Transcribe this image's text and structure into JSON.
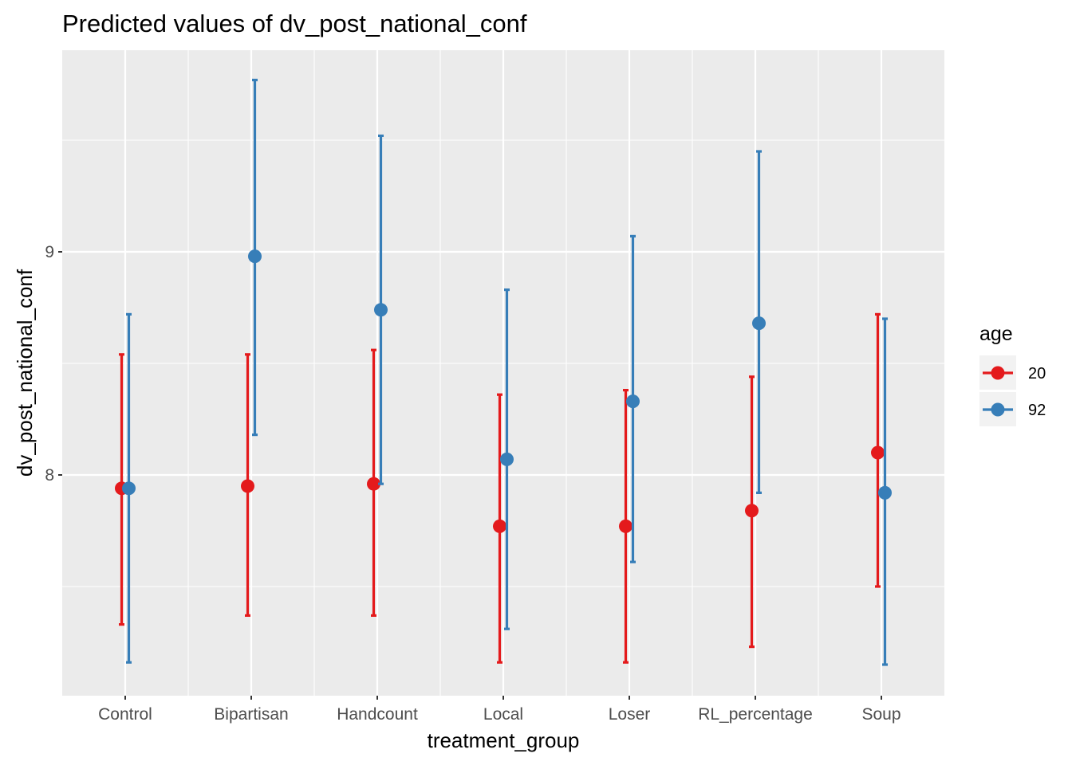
{
  "chart_data": {
    "type": "errorbar",
    "title": "Predicted values of dv_post_national_conf",
    "xlabel": "treatment_group",
    "ylabel": "dv_post_national_conf",
    "categories": [
      "Control",
      "Bipartisan",
      "Handcount",
      "Local",
      "Loser",
      "RL_percentage",
      "Soup"
    ],
    "ylim": [
      7.1,
      9.9
    ],
    "yticks": [
      8,
      9
    ],
    "ytick_labels": [
      "8",
      "9"
    ],
    "grid": true,
    "legend": {
      "title": "age",
      "position": "right"
    },
    "series": [
      {
        "name": "20",
        "color": "#e41a1c",
        "values": [
          7.94,
          7.95,
          7.96,
          7.77,
          7.77,
          7.84,
          8.1
        ],
        "lower": [
          7.33,
          7.37,
          7.37,
          7.16,
          7.16,
          7.23,
          7.5
        ],
        "upper": [
          8.54,
          8.54,
          8.56,
          8.36,
          8.38,
          8.44,
          8.72
        ]
      },
      {
        "name": "92",
        "color": "#377eb8",
        "values": [
          7.94,
          8.98,
          8.74,
          8.07,
          8.33,
          8.68,
          7.92
        ],
        "lower": [
          7.16,
          8.18,
          7.96,
          7.31,
          7.61,
          7.92,
          7.15
        ],
        "upper": [
          8.72,
          9.77,
          9.52,
          8.83,
          9.07,
          9.45,
          8.7
        ]
      }
    ]
  }
}
